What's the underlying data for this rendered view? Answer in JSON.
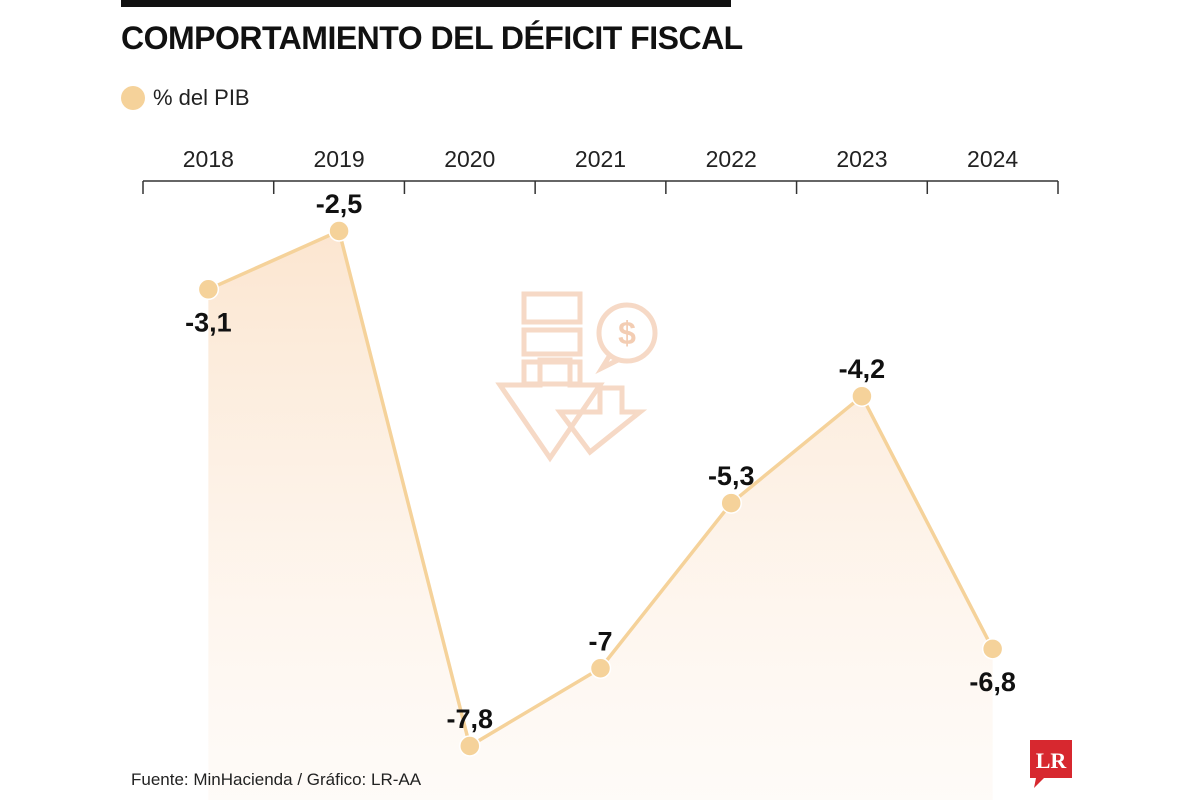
{
  "title": "COMPORTAMIENTO DEL DÉFICIT FISCAL",
  "legend": {
    "label": "% del PIB"
  },
  "source": "Fuente: MinHacienda / Gráfico: LR-AA",
  "logo": {
    "text": "LR",
    "color": "#d7282f"
  },
  "colors": {
    "series": "#f5d29a",
    "area": "#fbe3cb",
    "axis": "#333333",
    "icon": "#f3c8a8"
  },
  "chart_data": {
    "type": "line",
    "categories": [
      "2018",
      "2019",
      "2020",
      "2021",
      "2022",
      "2023",
      "2024"
    ],
    "series": [
      {
        "name": "% del PIB",
        "values": [
          -3.1,
          -2.5,
          -7.8,
          -7,
          -5.3,
          -4.2,
          -6.8
        ]
      }
    ],
    "data_labels": [
      "-3,1",
      "-2,5",
      "-7,8",
      "-7",
      "-5,3",
      "-4,2",
      "-6,8"
    ],
    "x_axis_position": "top",
    "ylim": [
      -8,
      -2
    ],
    "grid": false,
    "legend_position": "top-left"
  }
}
